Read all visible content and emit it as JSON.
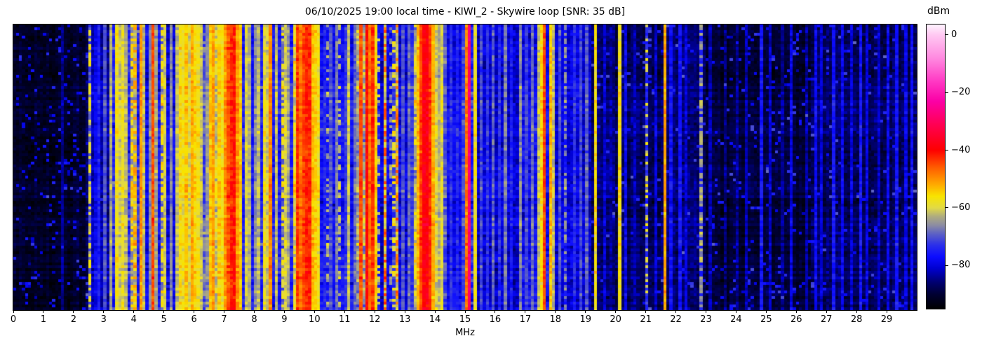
{
  "header": {
    "title": "06/10/2025 19:00 local time - KIWI_2 - Skywire loop [SNR: 35 dB]"
  },
  "x_axis": {
    "label": "MHz",
    "tick_labels": [
      "0",
      "1",
      "2",
      "3",
      "4",
      "5",
      "6",
      "7",
      "8",
      "9",
      "10",
      "11",
      "12",
      "13",
      "14",
      "15",
      "16",
      "17",
      "18",
      "19",
      "20",
      "21",
      "22",
      "23",
      "24",
      "25",
      "26",
      "27",
      "28",
      "29"
    ],
    "tick_values": [
      0,
      1,
      2,
      3,
      4,
      5,
      6,
      7,
      8,
      9,
      10,
      11,
      12,
      13,
      14,
      15,
      16,
      17,
      18,
      19,
      20,
      21,
      22,
      23,
      24,
      25,
      26,
      27,
      28,
      29
    ],
    "range_mhz": [
      0,
      30
    ]
  },
  "colorbar": {
    "label": "dBm",
    "tick_labels": [
      "0",
      "−20",
      "−40",
      "−60",
      "−80"
    ],
    "tick_values": [
      0,
      -20,
      -40,
      -60,
      -80
    ],
    "value_top_dbm": 3.6,
    "value_bottom_dbm": -95
  },
  "chart_data": {
    "type": "heatmap",
    "subtype": "radio-spectrum-waterfall",
    "title": "06/10/2025 19:00 local time - KIWI_2 - Skywire loop [SNR: 35 dB]",
    "xlabel": "MHz",
    "x_range_mhz": [
      0,
      30
    ],
    "value_unit": "dBm",
    "value_range_dbm": [
      -95,
      3.6
    ],
    "snr_db_shown_in_title": 35,
    "bin_mhz": 0.1,
    "time_rows": 102,
    "noise_seed": 20250610,
    "colormap_stops": [
      [
        3.6,
        "#fef4fe"
      ],
      [
        0,
        "#ffc8f2"
      ],
      [
        -8,
        "#ff8ae0"
      ],
      [
        -16,
        "#ff3ac4"
      ],
      [
        -23,
        "#fb00a6"
      ],
      [
        -31,
        "#ff0054"
      ],
      [
        -40,
        "#fe0000"
      ],
      [
        -46,
        "#ff5c00"
      ],
      [
        -52,
        "#ffab00"
      ],
      [
        -56,
        "#f8e400"
      ],
      [
        -60,
        "#e2da45"
      ],
      [
        -63,
        "#aeab80"
      ],
      [
        -66,
        "#8d8da2"
      ],
      [
        -69,
        "#5d61c4"
      ],
      [
        -73,
        "#2a2eea"
      ],
      [
        -77,
        "#0c0cff"
      ],
      [
        -81,
        "#0000d0"
      ],
      [
        -86,
        "#00006d"
      ],
      [
        -90,
        "#000032"
      ],
      [
        -95,
        "#000000"
      ]
    ],
    "noise_floor_segments_mhz_dbm": [
      [
        0.0,
        2.4,
        -91,
        3
      ],
      [
        2.4,
        2.62,
        -86,
        4
      ],
      [
        2.62,
        3.3,
        -82,
        5
      ],
      [
        3.3,
        4.45,
        -74,
        7
      ],
      [
        4.45,
        5.4,
        -77,
        6
      ],
      [
        5.4,
        6.5,
        -71,
        7
      ],
      [
        6.5,
        7.65,
        -62,
        7
      ],
      [
        7.65,
        8.2,
        -75,
        6
      ],
      [
        8.2,
        9.3,
        -74,
        6
      ],
      [
        9.3,
        10.15,
        -58,
        7
      ],
      [
        10.15,
        11.45,
        -77,
        6
      ],
      [
        11.45,
        12.1,
        -65,
        8
      ],
      [
        12.1,
        13.3,
        -79,
        6
      ],
      [
        13.3,
        13.9,
        -61,
        8
      ],
      [
        13.9,
        14.45,
        -70,
        6
      ],
      [
        14.45,
        15.0,
        -78,
        5
      ],
      [
        15.0,
        15.4,
        -73,
        7
      ],
      [
        15.4,
        16.8,
        -80,
        5
      ],
      [
        16.8,
        18.0,
        -78,
        6
      ],
      [
        18.0,
        19.2,
        -80,
        5
      ],
      [
        19.2,
        20.0,
        -85,
        4
      ],
      [
        20.0,
        21.6,
        -87,
        4
      ],
      [
        21.6,
        23.0,
        -86,
        4
      ],
      [
        23.0,
        26.5,
        -90,
        3
      ],
      [
        26.5,
        30.0,
        -87,
        4
      ]
    ],
    "carrier_style_legend": {
      "0": "solid",
      "1": "dashed",
      "2": "dotted"
    },
    "carriers_mhz_dbm": [
      [
        1.6,
        -84,
        1,
        0
      ],
      [
        2.51,
        -59,
        1,
        1
      ],
      [
        2.7,
        -78,
        1,
        0
      ],
      [
        2.9,
        -75,
        1,
        0
      ],
      [
        3.08,
        -70,
        1,
        0
      ],
      [
        3.22,
        -63,
        1,
        0
      ],
      [
        3.4,
        -57,
        1,
        0
      ],
      [
        3.55,
        -61,
        1,
        0
      ],
      [
        3.68,
        -58,
        1,
        0
      ],
      [
        3.8,
        -62,
        1,
        0
      ],
      [
        3.9,
        -55,
        1,
        1
      ],
      [
        4.02,
        -52,
        1,
        1
      ],
      [
        4.22,
        -50,
        1,
        0
      ],
      [
        4.35,
        -62,
        1,
        0
      ],
      [
        4.5,
        -66,
        1,
        0
      ],
      [
        4.67,
        -45,
        1,
        0
      ],
      [
        4.8,
        -64,
        1,
        0
      ],
      [
        4.97,
        -56,
        1,
        1
      ],
      [
        5.1,
        -60,
        1,
        0
      ],
      [
        5.25,
        -66,
        1,
        0
      ],
      [
        5.4,
        -62,
        1,
        0
      ],
      [
        5.51,
        -56,
        1,
        0
      ],
      [
        5.63,
        -58,
        1,
        0
      ],
      [
        5.75,
        -54,
        1,
        0
      ],
      [
        5.88,
        -60,
        1,
        0
      ],
      [
        5.96,
        -52,
        1,
        0
      ],
      [
        6.07,
        -55,
        1,
        0
      ],
      [
        6.18,
        -57,
        1,
        0
      ],
      [
        6.3,
        -61,
        1,
        0
      ],
      [
        6.42,
        -65,
        1,
        0
      ],
      [
        6.55,
        -54,
        1,
        0
      ],
      [
        6.68,
        -51,
        1,
        0
      ],
      [
        6.8,
        -55,
        1,
        0
      ],
      [
        6.92,
        -57,
        1,
        0
      ],
      [
        7.05,
        -50,
        1,
        0
      ],
      [
        7.15,
        -45,
        1,
        0
      ],
      [
        7.25,
        -42,
        2,
        0
      ],
      [
        7.38,
        -41,
        1,
        0
      ],
      [
        7.47,
        -50,
        1,
        0
      ],
      [
        7.57,
        -54,
        1,
        0
      ],
      [
        7.7,
        -60,
        1,
        0
      ],
      [
        7.85,
        -63,
        1,
        0
      ],
      [
        8.0,
        -66,
        1,
        0
      ],
      [
        8.2,
        -62,
        1,
        0
      ],
      [
        8.33,
        -58,
        1,
        0
      ],
      [
        8.47,
        -61,
        1,
        0
      ],
      [
        8.58,
        -49,
        1,
        0
      ],
      [
        8.72,
        -62,
        1,
        0
      ],
      [
        8.9,
        -58,
        1,
        1
      ],
      [
        9.05,
        -60,
        1,
        0
      ],
      [
        9.17,
        -64,
        1,
        0
      ],
      [
        9.4,
        -43,
        1,
        0
      ],
      [
        9.5,
        -47,
        1,
        0
      ],
      [
        9.58,
        -51,
        1,
        0
      ],
      [
        9.66,
        -44,
        1,
        0
      ],
      [
        9.76,
        -42,
        2,
        0
      ],
      [
        9.87,
        -50,
        1,
        0
      ],
      [
        9.95,
        -53,
        1,
        0
      ],
      [
        10.05,
        -55,
        1,
        0
      ],
      [
        10.12,
        -57,
        1,
        0
      ],
      [
        10.3,
        -74,
        1,
        0
      ],
      [
        10.45,
        -63,
        1,
        2
      ],
      [
        10.6,
        -70,
        1,
        0
      ],
      [
        10.75,
        -67,
        1,
        0
      ],
      [
        10.88,
        -62,
        1,
        2
      ],
      [
        11.0,
        -72,
        1,
        0
      ],
      [
        11.12,
        -61,
        1,
        0
      ],
      [
        11.3,
        -68,
        1,
        0
      ],
      [
        11.5,
        -52,
        1,
        0
      ],
      [
        11.6,
        -45,
        1,
        0
      ],
      [
        11.72,
        -40,
        1,
        0
      ],
      [
        11.82,
        -48,
        1,
        0
      ],
      [
        11.92,
        -43,
        1,
        0
      ],
      [
        12.02,
        -55,
        1,
        0
      ],
      [
        12.2,
        -62,
        1,
        2
      ],
      [
        12.35,
        -46,
        1,
        2
      ],
      [
        12.5,
        -66,
        1,
        2
      ],
      [
        12.65,
        -58,
        1,
        2
      ],
      [
        12.78,
        -48,
        1,
        2
      ],
      [
        12.95,
        -70,
        1,
        0
      ],
      [
        13.1,
        -68,
        1,
        0
      ],
      [
        13.22,
        -72,
        1,
        0
      ],
      [
        13.4,
        -53,
        1,
        0
      ],
      [
        13.55,
        -44,
        1,
        0
      ],
      [
        13.65,
        -38,
        2,
        0
      ],
      [
        13.8,
        -43,
        1,
        0
      ],
      [
        13.9,
        -52,
        1,
        0
      ],
      [
        13.98,
        -58,
        1,
        0
      ],
      [
        14.08,
        -60,
        1,
        0
      ],
      [
        14.18,
        -63,
        1,
        0
      ],
      [
        14.28,
        -59,
        1,
        0
      ],
      [
        14.55,
        -73,
        1,
        0
      ],
      [
        14.75,
        -74,
        1,
        0
      ],
      [
        14.9,
        -71,
        1,
        0
      ],
      [
        15.05,
        -48,
        1,
        0
      ],
      [
        15.18,
        -28,
        1,
        0
      ],
      [
        15.35,
        -57,
        1,
        0
      ],
      [
        15.55,
        -71,
        1,
        0
      ],
      [
        15.75,
        -73,
        1,
        0
      ],
      [
        15.95,
        -69,
        1,
        0
      ],
      [
        16.15,
        -73,
        1,
        0
      ],
      [
        16.35,
        -67,
        1,
        0
      ],
      [
        16.55,
        -75,
        1,
        0
      ],
      [
        16.85,
        -66,
        1,
        0
      ],
      [
        17.05,
        -71,
        1,
        0
      ],
      [
        17.25,
        -68,
        1,
        0
      ],
      [
        17.42,
        -61,
        1,
        0
      ],
      [
        17.55,
        -56,
        1,
        0
      ],
      [
        17.68,
        -44,
        1,
        0
      ],
      [
        17.83,
        -53,
        1,
        0
      ],
      [
        17.95,
        -62,
        1,
        0
      ],
      [
        18.1,
        -70,
        1,
        0
      ],
      [
        18.35,
        -65,
        1,
        1
      ],
      [
        18.6,
        -73,
        1,
        0
      ],
      [
        18.85,
        -71,
        1,
        0
      ],
      [
        19.05,
        -69,
        1,
        0
      ],
      [
        19.36,
        -56,
        1,
        0
      ],
      [
        19.6,
        -80,
        1,
        0
      ],
      [
        19.85,
        -83,
        1,
        0
      ],
      [
        20.13,
        -57,
        1,
        0
      ],
      [
        20.4,
        -78,
        1,
        0
      ],
      [
        20.7,
        -82,
        1,
        0
      ],
      [
        21.0,
        -59,
        1,
        2
      ],
      [
        21.3,
        -80,
        1,
        0
      ],
      [
        21.62,
        -51,
        1,
        0
      ],
      [
        21.9,
        -77,
        1,
        0
      ],
      [
        22.1,
        -76,
        1,
        0
      ],
      [
        22.35,
        -80,
        1,
        0
      ],
      [
        22.8,
        -64,
        1,
        1
      ],
      [
        23.2,
        -82,
        1,
        0
      ],
      [
        23.6,
        -85,
        1,
        0
      ],
      [
        24.0,
        -84,
        1,
        0
      ],
      [
        24.35,
        -82,
        1,
        0
      ],
      [
        24.9,
        -76,
        1,
        0
      ],
      [
        25.1,
        -81,
        1,
        0
      ],
      [
        25.5,
        -84,
        1,
        0
      ],
      [
        25.9,
        -79,
        1,
        0
      ],
      [
        26.3,
        -83,
        1,
        0
      ],
      [
        26.6,
        -77,
        1,
        0
      ],
      [
        26.9,
        -80,
        1,
        0
      ],
      [
        27.2,
        -76,
        1,
        0
      ],
      [
        27.5,
        -78,
        1,
        0
      ],
      [
        27.8,
        -80,
        1,
        0
      ],
      [
        28.1,
        -76,
        1,
        0
      ],
      [
        28.4,
        -79,
        1,
        0
      ],
      [
        28.7,
        -81,
        1,
        0
      ],
      [
        29.0,
        -78,
        1,
        0
      ],
      [
        29.3,
        -76,
        1,
        0
      ],
      [
        29.6,
        -79,
        1,
        0
      ],
      [
        29.9,
        -77,
        1,
        0
      ]
    ]
  }
}
